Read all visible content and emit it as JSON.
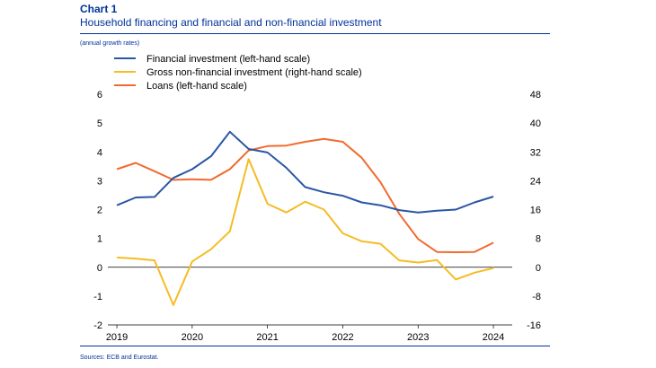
{
  "header": {
    "chart_number": "Chart 1",
    "title": "Household financing and financial and non-financial investment",
    "units": "(annual growth rates)"
  },
  "footer": {
    "source": "Sources: ECB and Eurostat."
  },
  "colors": {
    "financial": "#2A56A4",
    "gross": "#F5BC24",
    "loans": "#F26A2E",
    "rule": "#003299"
  },
  "chart_data": {
    "type": "line",
    "x": [
      2019.0,
      2019.25,
      2019.5,
      2019.75,
      2020.0,
      2020.25,
      2020.5,
      2020.75,
      2021.0,
      2021.25,
      2021.5,
      2021.75,
      2022.0,
      2022.25,
      2022.5,
      2022.75,
      2023.0,
      2023.25,
      2023.5,
      2023.75,
      2024.0,
      2024.25
    ],
    "xticks": [
      "2019",
      "2020",
      "2021",
      "2022",
      "2023",
      "2024"
    ],
    "xtick_values": [
      2019,
      2020,
      2021,
      2022,
      2023,
      2024
    ],
    "xlim": [
      2018.88,
      2024.25
    ],
    "ylim_left": [
      -2,
      6
    ],
    "yticks_left": [
      "6",
      "5",
      "4",
      "3",
      "2",
      "1",
      "0",
      "-1",
      "-2"
    ],
    "ylim_right": [
      -16,
      48
    ],
    "yticks_right": [
      "48",
      "40",
      "32",
      "24",
      "16",
      "8",
      "0",
      "-8",
      "-16"
    ],
    "series": [
      {
        "name": "Financial investment (left-hand scale)",
        "axis": "left",
        "color": "#2A56A4",
        "values": [
          2.15,
          2.42,
          2.44,
          3.1,
          3.4,
          3.85,
          4.7,
          4.1,
          3.98,
          3.45,
          2.78,
          2.6,
          2.48,
          2.25,
          2.15,
          1.98,
          1.9,
          1.96,
          2.0,
          2.25,
          2.45,
          null
        ]
      },
      {
        "name": "Gross non-financial investment (right-hand scale)",
        "axis": "right",
        "color": "#F5BC24",
        "values": [
          2.7,
          2.4,
          1.9,
          -10.5,
          1.6,
          5.0,
          10.0,
          30.0,
          17.6,
          15.2,
          18.2,
          16.0,
          9.4,
          7.2,
          6.5,
          1.9,
          1.3,
          2.0,
          -3.4,
          -1.5,
          -0.2,
          null
        ]
      },
      {
        "name": "Loans (left-hand scale)",
        "axis": "left",
        "color": "#F26A2E",
        "values": [
          3.4,
          3.62,
          3.33,
          3.03,
          3.05,
          3.03,
          3.4,
          4.05,
          4.2,
          4.22,
          4.35,
          4.45,
          4.35,
          3.8,
          2.95,
          1.85,
          0.98,
          0.53,
          0.52,
          0.53,
          0.85,
          null
        ]
      }
    ]
  }
}
